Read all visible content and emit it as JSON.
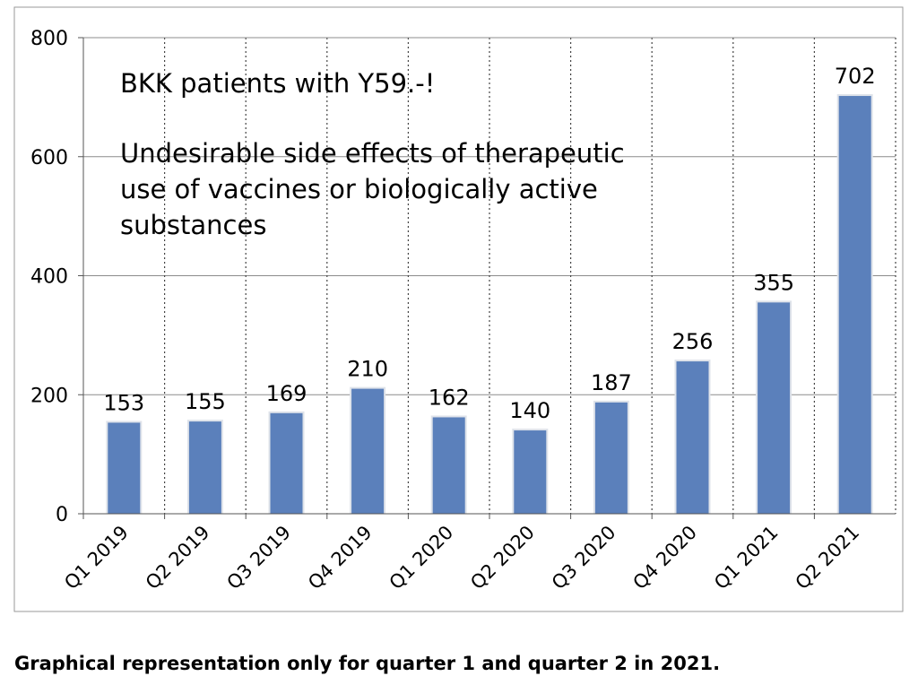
{
  "chart_data": {
    "type": "bar",
    "categories": [
      "Q1 2019",
      "Q2 2019",
      "Q3 2019",
      "Q4 2019",
      "Q1 2020",
      "Q2 2020",
      "Q3 2020",
      "Q4 2020",
      "Q1 2021",
      "Q2 2021"
    ],
    "values": [
      153,
      155,
      169,
      210,
      162,
      140,
      187,
      256,
      355,
      702
    ],
    "data_labels": [
      "153",
      "155",
      "169",
      "210",
      "162",
      "140",
      "187",
      "256",
      "355",
      "702"
    ],
    "title_lines": [
      "BKK patients with Y59.-!",
      "",
      "Undesirable side effects of therapeutic",
      "use of vaccines or biologically active",
      "substances"
    ],
    "xlabel": "",
    "ylabel": "",
    "ylim": [
      0,
      800
    ],
    "yticks": [
      0,
      200,
      400,
      600,
      800
    ],
    "ytick_labels": [
      "0",
      "200",
      "400",
      "600",
      "800"
    ],
    "grid": {
      "horizontal": "solid",
      "vertical": "dotted"
    },
    "bar_color": "#5b80bb",
    "grid_color": "#8c8c8c"
  },
  "caption": "Graphical representation only for quarter 1 and quarter 2 in 2021."
}
